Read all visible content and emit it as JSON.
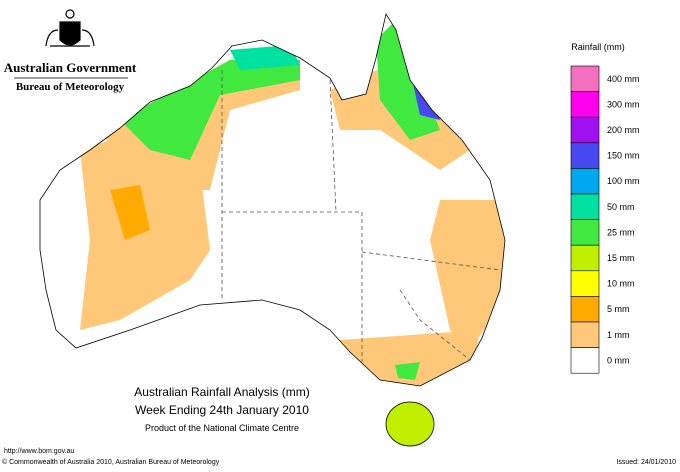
{
  "header": {
    "government": "Australian Government",
    "bureau": "Bureau of Meteorology"
  },
  "legend": {
    "title": "Rainfall (mm)",
    "items": [
      {
        "label": "400 mm",
        "color": "#f46fbe"
      },
      {
        "label": "300 mm",
        "color": "#ff00ee"
      },
      {
        "label": "200 mm",
        "color": "#a010f0"
      },
      {
        "label": "150 mm",
        "color": "#4848f0"
      },
      {
        "label": "100 mm",
        "color": "#00a8f0"
      },
      {
        "label": "50 mm",
        "color": "#00e0a0"
      },
      {
        "label": "25 mm",
        "color": "#40e840"
      },
      {
        "label": "15 mm",
        "color": "#c0f000"
      },
      {
        "label": "10 mm",
        "color": "#ffff00"
      },
      {
        "label": "5 mm",
        "color": "#ffaa00"
      },
      {
        "label": "1 mm",
        "color": "#ffc878"
      },
      {
        "label": "0 mm",
        "color": "#ffffff"
      }
    ]
  },
  "title": {
    "line1": "Australian Rainfall Analysis (mm)",
    "line2": "Week Ending 24th January 2010",
    "line3": "Product of the National Climate Centre"
  },
  "footer": {
    "url": "http://www.bom.gov.au",
    "copyright": "© Commonwealth of Australia 2010, Australian Bureau of Meteorology",
    "issued": "Issued: 24/01/2010"
  }
}
